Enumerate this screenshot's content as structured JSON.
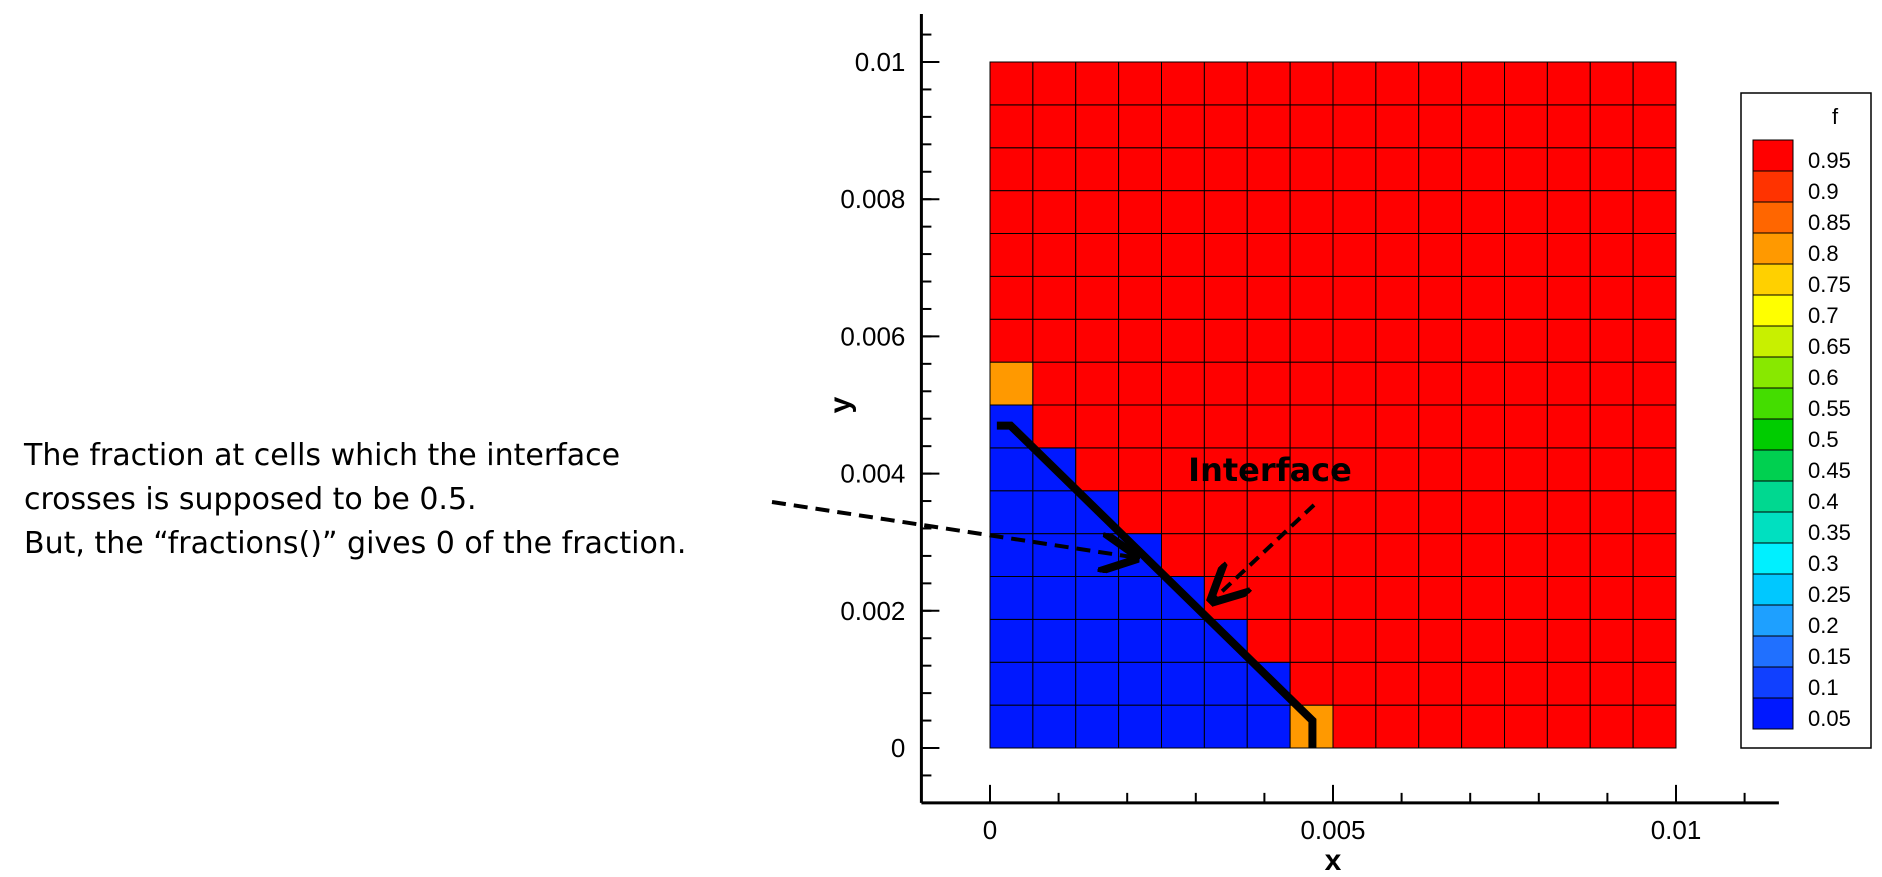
{
  "annotation": {
    "lines": [
      "The fraction at cells which the interface",
      "crosses is supposed to be 0.5.",
      "But, the “fractions()” gives 0 of the fraction."
    ],
    "interface_label": "Interface"
  },
  "chart_data": {
    "type": "heatmap",
    "xlabel": "x",
    "ylabel": "y",
    "xlim": [
      -0.001,
      0.0115
    ],
    "ylim": [
      -0.0008,
      0.0107
    ],
    "x_ticks": [
      {
        "value": 0,
        "label": "0"
      },
      {
        "value": 0.005,
        "label": "0.005"
      },
      {
        "value": 0.01,
        "label": "0.01"
      }
    ],
    "y_ticks": [
      {
        "value": 0,
        "label": "0"
      },
      {
        "value": 0.002,
        "label": "0.002"
      },
      {
        "value": 0.004,
        "label": "0.004"
      },
      {
        "value": 0.006,
        "label": "0.006"
      },
      {
        "value": 0.008,
        "label": "0.008"
      },
      {
        "value": 0.01,
        "label": "0.01"
      }
    ],
    "grid": {
      "x0": 0,
      "x1": 0.01,
      "y0": 0,
      "y1": 0.01,
      "nx": 16,
      "ny": 16
    },
    "field_rows_bottom_to_top": [
      "0000000111111111",
      "0000000111111111",
      "0000001111111111",
      "0000011111111111",
      "0000111111111111",
      "0001111111111111",
      "0011111111111111",
      "0111111111111111",
      "1111111111111111",
      "1111111111111111",
      "1111111111111111",
      "1111111111111111",
      "1111111111111111",
      "1111111111111111",
      "1111111111111111",
      "1111111111111111"
    ],
    "highlighted_cells": [
      {
        "i": 0,
        "j": 8,
        "f": 0.8
      },
      {
        "i": 7,
        "j": 0,
        "f": 0.8
      }
    ],
    "field_values": {
      "0": 0.0,
      "1": 1.0
    },
    "interface_line": [
      [
        0.0001,
        0.0047
      ],
      [
        0.0003,
        0.0047
      ],
      [
        0.0047,
        0.0004
      ],
      [
        0.0047,
        0.0
      ]
    ],
    "legend": {
      "title": "f",
      "placement": "right",
      "levels": [
        "0.95",
        "0.9",
        "0.85",
        "0.8",
        "0.75",
        "0.7",
        "0.65",
        "0.6",
        "0.55",
        "0.5",
        "0.45",
        "0.4",
        "0.35",
        "0.3",
        "0.25",
        "0.2",
        "0.15",
        "0.1",
        "0.05"
      ],
      "colors": [
        "#ff0000",
        "#ff3300",
        "#ff6600",
        "#ff9900",
        "#ffd000",
        "#ffff00",
        "#c8f000",
        "#88e800",
        "#44dd00",
        "#00cc00",
        "#00d050",
        "#00d890",
        "#00e0c0",
        "#00f0ff",
        "#00c8ff",
        "#1ea0ff",
        "#2070ff",
        "#1040ff",
        "#0018ff"
      ]
    }
  }
}
